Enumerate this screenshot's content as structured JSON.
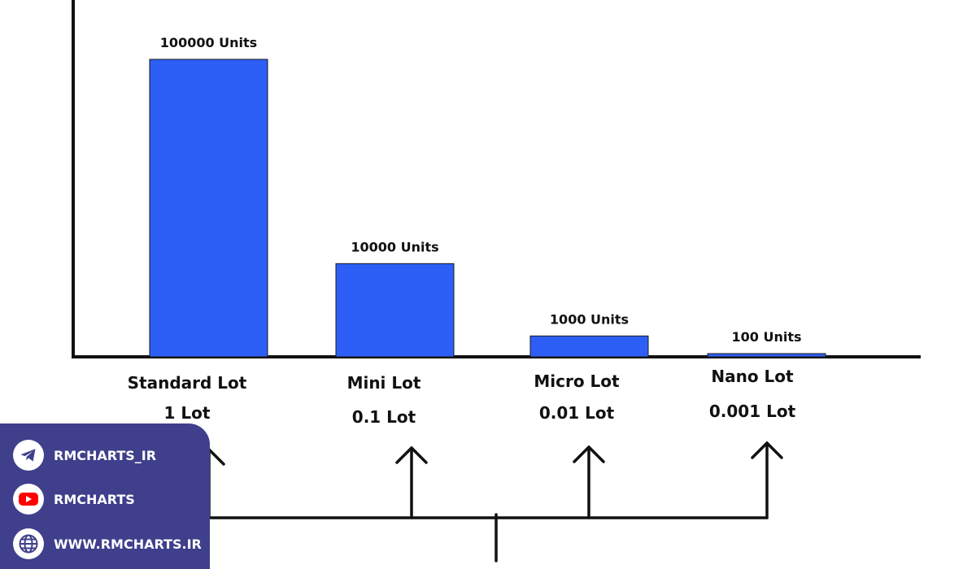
{
  "chart_data": {
    "type": "bar",
    "categories": [
      "Standard Lot",
      "Mini Lot",
      "Micro Lot",
      "Nano Lot"
    ],
    "lots": [
      "1 Lot",
      "0.1 Lot",
      "0.01 Lot",
      "0.001 Lot"
    ],
    "values": [
      100000,
      10000,
      1000,
      100
    ],
    "value_labels": [
      "100000 Units",
      "10000 Units",
      "1000 Units",
      "100 Units"
    ],
    "title": "",
    "xlabel": "",
    "ylabel": "",
    "ylim": [
      0,
      100000
    ],
    "bar_color": "#2d5ff6",
    "scale": "log-like (visual)"
  },
  "social": [
    {
      "icon": "telegram-icon",
      "label": "RMCHARTS_IR"
    },
    {
      "icon": "youtube-icon",
      "label": "RMCHARTS"
    },
    {
      "icon": "globe-icon",
      "label": "WWW.RMCHARTS.IR"
    }
  ],
  "colors": {
    "panel": "#3f3f8c",
    "bar": "#2d5ff6",
    "youtube": "#ff0000",
    "ink": "#111111"
  }
}
